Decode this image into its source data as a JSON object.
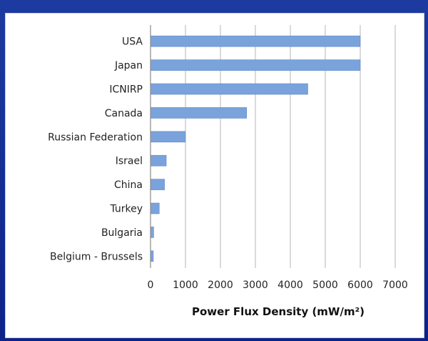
{
  "chart_data": {
    "type": "bar",
    "orientation": "horizontal",
    "categories": [
      "USA",
      "Japan",
      "ICNIRP",
      "Canada",
      "Russian Federation",
      "Israel",
      "China",
      "Turkey",
      "Bulgaria",
      "Belgium - Brussels"
    ],
    "values": [
      6000,
      6000,
      4500,
      2750,
      1000,
      450,
      400,
      250,
      90,
      80
    ],
    "x_ticks": [
      "0",
      "1000",
      "2000",
      "3000",
      "4000",
      "5000",
      "6000",
      "7000"
    ],
    "xlim": [
      0,
      7000
    ],
    "xlabel": "Power Flux Density (mW/m²)",
    "grid": true,
    "bar_color": "#7aa3dc"
  }
}
